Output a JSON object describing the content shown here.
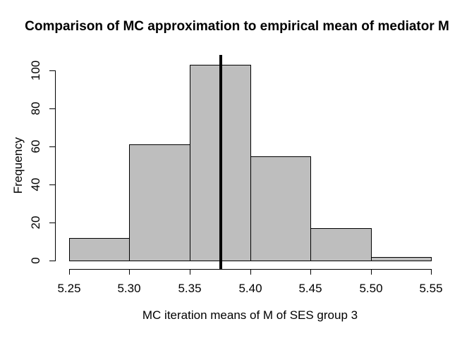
{
  "chart_data": {
    "type": "bar",
    "subtype": "histogram",
    "title": "Comparison of MC approximation to empirical mean of mediator M",
    "xlabel": "MC iteration means of M of SES group 3",
    "ylabel": "Frequency",
    "breaks": [
      5.25,
      5.3,
      5.35,
      5.4,
      5.45,
      5.5,
      5.55
    ],
    "counts": [
      12,
      61,
      103,
      55,
      17,
      2
    ],
    "x_tick_labels": [
      "5.25",
      "5.30",
      "5.35",
      "5.40",
      "5.45",
      "5.50",
      "5.55"
    ],
    "y_ticks": [
      0,
      20,
      40,
      60,
      80,
      100
    ],
    "xlim": [
      5.25,
      5.55
    ],
    "ylim": [
      0,
      100
    ],
    "grid": false,
    "legend": false,
    "bar_fill": "#bebebe",
    "bar_border": "#000000",
    "vline": {
      "value": 5.376,
      "color": "#000000"
    }
  }
}
